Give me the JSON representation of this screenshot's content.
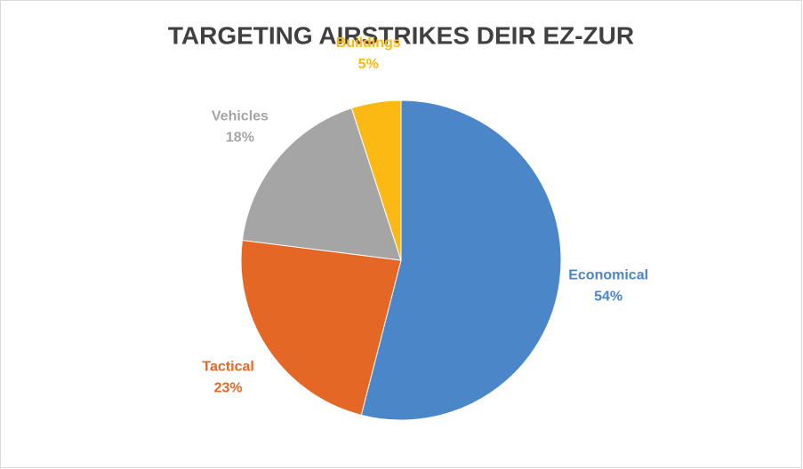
{
  "chart_data": {
    "type": "pie",
    "title": "TARGETING AIRSTRIKES DEIR EZ-ZUR",
    "categories": [
      "Economical",
      "Tactical",
      "Vehicles",
      "Buildings"
    ],
    "values": [
      54,
      23,
      18,
      5
    ],
    "value_labels": [
      "54%",
      "23%",
      "18%",
      "5%"
    ],
    "colors": [
      "#4a86c8",
      "#e46726",
      "#a5a5a5",
      "#fdb913"
    ]
  }
}
